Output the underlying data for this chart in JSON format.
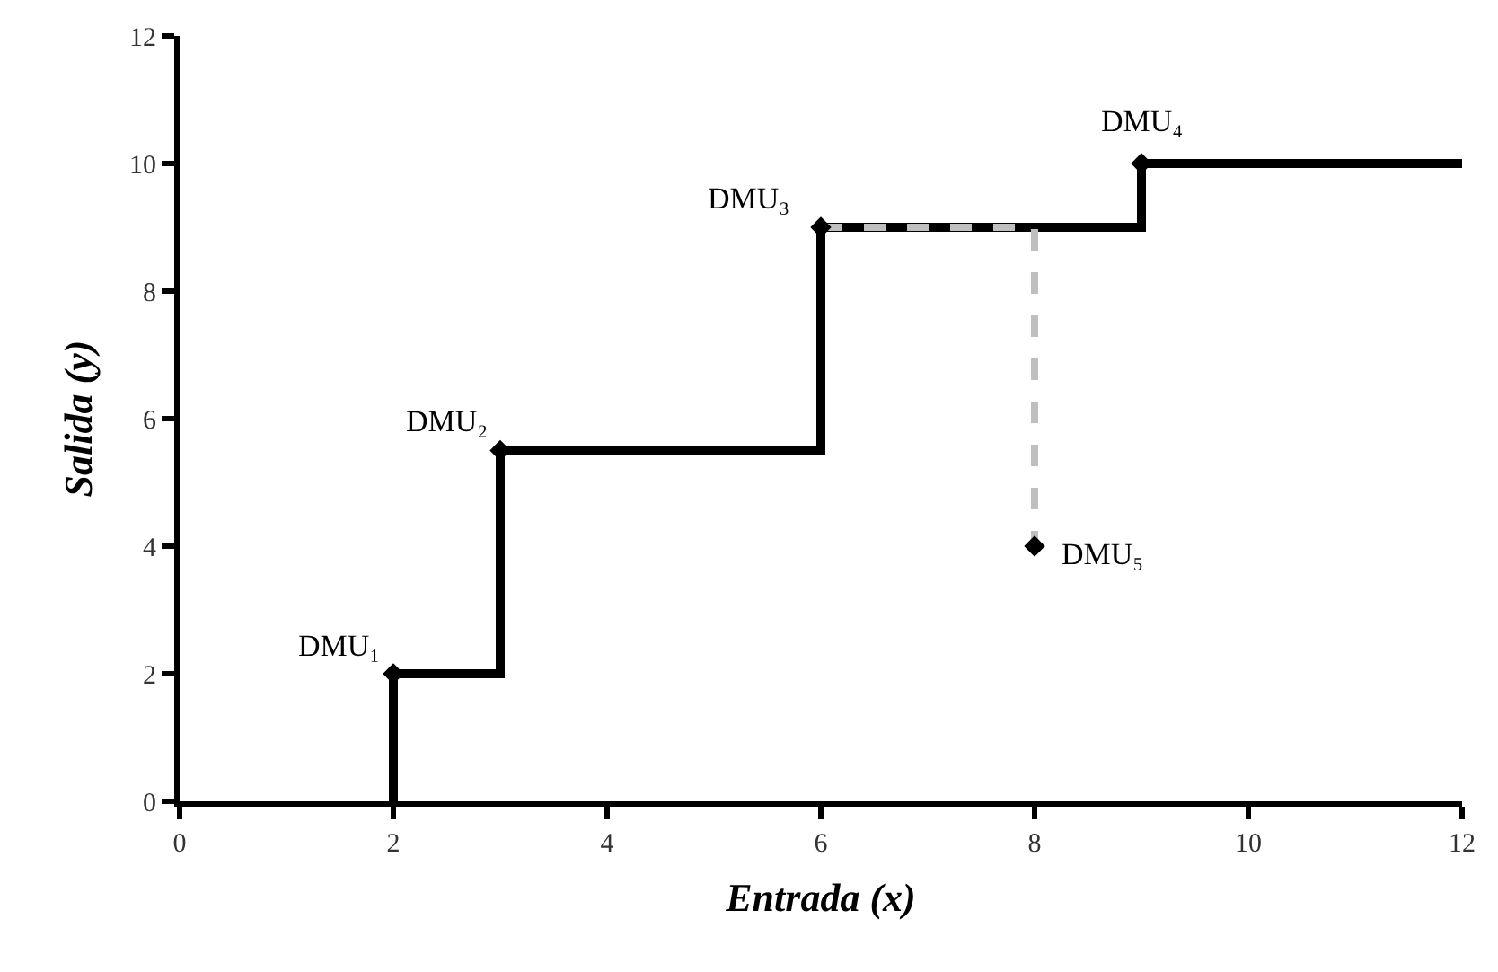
{
  "chart_data": {
    "type": "line",
    "xlabel": "Entrada (x)",
    "ylabel": "Salida (y)",
    "xlim": [
      0,
      12
    ],
    "xticks": [
      0,
      2,
      4,
      6,
      8,
      10,
      12
    ],
    "ylim": [
      0,
      12
    ],
    "yticks": [
      0,
      2,
      4,
      6,
      8,
      10,
      12
    ],
    "series": [
      {
        "x": [
          2,
          2,
          3,
          3,
          6,
          6,
          9,
          9,
          12
        ],
        "values": [
          0,
          2,
          2,
          5.5,
          5.5,
          9,
          9,
          10,
          10
        ],
        "color": "#000000",
        "line_style": "solid",
        "marker": "none"
      },
      {
        "x": [
          6,
          8,
          8
        ],
        "values": [
          9,
          9,
          4
        ],
        "color": "#bfbfbf",
        "line_style": "dashed",
        "marker": "none"
      },
      {
        "type": "scatter",
        "x": [
          2,
          3,
          6,
          9,
          8
        ],
        "values": [
          2,
          5.5,
          9,
          10,
          4
        ],
        "color": "#000000",
        "marker": "diamond"
      }
    ],
    "annotations": [
      {
        "text": "DMU₁",
        "x": 2,
        "y": 2
      },
      {
        "text": "DMU₂",
        "x": 3,
        "y": 5.5
      },
      {
        "text": "DMU₃",
        "x": 6,
        "y": 9
      },
      {
        "text": "DMU₄",
        "x": 9,
        "y": 10
      },
      {
        "text": "DMU₅",
        "x": 8,
        "y": 4
      }
    ]
  }
}
